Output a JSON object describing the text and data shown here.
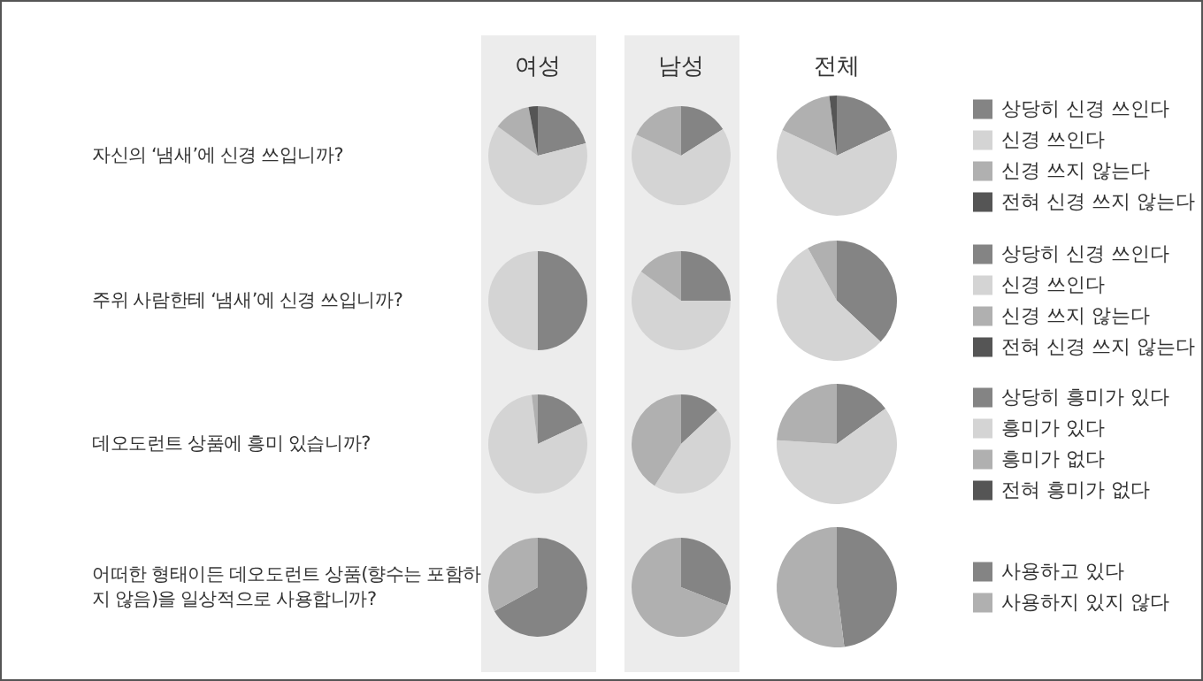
{
  "chart_data": [
    {
      "type": "pie",
      "title": "여성",
      "annotations": [
        "자신의 ‘냄새’에 신경 쓰입니까?"
      ],
      "legend": false,
      "categories": [
        null,
        null,
        null,
        null
      ],
      "values": [
        21,
        64,
        12,
        3
      ],
      "colors": [
        "#848484",
        "#d4d4d4",
        "#b0b0b0",
        "#555555"
      ]
    },
    {
      "type": "pie",
      "title": "남성",
      "legend": false,
      "categories": [
        null,
        null,
        null,
        null
      ],
      "values": [
        16,
        66,
        18,
        0
      ],
      "colors": [
        "#848484",
        "#d4d4d4",
        "#b0b0b0",
        "#555555"
      ]
    },
    {
      "type": "pie",
      "title": "전체",
      "legend": "right",
      "categories": [
        "상당히 신경 쓰인다",
        "신경 쓰인다",
        "신경 쓰지 않는다",
        "전혀 신경 쓰지 않는다"
      ],
      "values": [
        18,
        64,
        16,
        2
      ],
      "colors": [
        "#848484",
        "#d4d4d4",
        "#b0b0b0",
        "#555555"
      ]
    },
    {
      "type": "pie",
      "annotations": [
        "주위 사람한테 ‘냄새’에 신경 쓰입니까?"
      ],
      "legend": false,
      "categories": [
        null,
        null,
        null,
        null
      ],
      "values": [
        50,
        50,
        0,
        0
      ],
      "colors": [
        "#848484",
        "#d4d4d4",
        "#b0b0b0",
        "#555555"
      ]
    },
    {
      "type": "pie",
      "legend": false,
      "categories": [
        null,
        null,
        null,
        null
      ],
      "values": [
        25,
        60,
        15,
        0
      ],
      "colors": [
        "#848484",
        "#d4d4d4",
        "#b0b0b0",
        "#555555"
      ]
    },
    {
      "type": "pie",
      "legend": "right",
      "categories": [
        "상당히 신경 쓰인다",
        "신경 쓰인다",
        "신경 쓰지 않는다",
        "전혀 신경 쓰지 않는다"
      ],
      "values": [
        37,
        55,
        8,
        0
      ],
      "colors": [
        "#848484",
        "#d4d4d4",
        "#b0b0b0",
        "#555555"
      ]
    },
    {
      "type": "pie",
      "annotations": [
        "데오도런트 상품에 흥미 있습니까?"
      ],
      "legend": false,
      "categories": [
        null,
        null,
        null,
        null
      ],
      "values": [
        18,
        80,
        2,
        0
      ],
      "colors": [
        "#848484",
        "#d4d4d4",
        "#b0b0b0",
        "#555555"
      ]
    },
    {
      "type": "pie",
      "legend": false,
      "categories": [
        null,
        null,
        null,
        null
      ],
      "values": [
        13,
        46,
        41,
        0
      ],
      "colors": [
        "#848484",
        "#d4d4d4",
        "#b0b0b0",
        "#555555"
      ]
    },
    {
      "type": "pie",
      "legend": "right",
      "categories": [
        "상당히 흥미가 있다",
        "흥미가 있다",
        "흥미가 없다",
        "전혀 흥미가 없다"
      ],
      "values": [
        15,
        61,
        24,
        0
      ],
      "colors": [
        "#848484",
        "#d4d4d4",
        "#b0b0b0",
        "#555555"
      ]
    },
    {
      "type": "pie",
      "annotations": [
        "어떠한 형태이든 데오도런트 상품(향수는 포함하\n지 않음)을 일상적으로 사용합니까?"
      ],
      "legend": false,
      "categories": [
        null,
        null
      ],
      "values": [
        67,
        33
      ],
      "colors": [
        "#848484",
        "#b0b0b0"
      ]
    },
    {
      "type": "pie",
      "legend": false,
      "categories": [
        null,
        null
      ],
      "values": [
        31,
        69
      ],
      "colors": [
        "#848484",
        "#b0b0b0"
      ]
    },
    {
      "type": "pie",
      "legend": "right",
      "categories": [
        "사용하고 있다",
        "사용하지 있지 않다"
      ],
      "values": [
        48,
        52
      ],
      "colors": [
        "#848484",
        "#b0b0b0"
      ]
    }
  ]
}
